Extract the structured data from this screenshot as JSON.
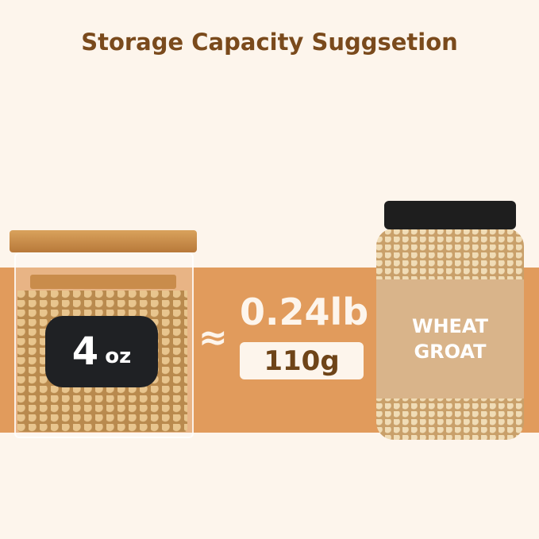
{
  "title": "Storage Capacity Suggsetion",
  "jar_label": {
    "number": "4",
    "unit": "oz"
  },
  "approx_symbol": "≈",
  "weight_lb": "0.24lb",
  "weight_g": "110g",
  "product_label": {
    "line1": "WHEAT",
    "line2": "GROAT"
  },
  "colors": {
    "background": "#fdf5ec",
    "band": "#e19b5c",
    "title_text": "#7a4a1c",
    "label": "#d9b48a"
  }
}
